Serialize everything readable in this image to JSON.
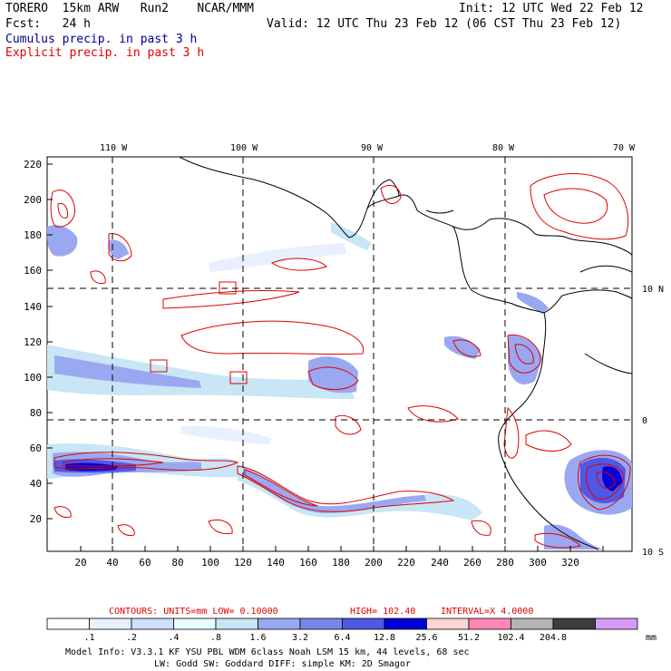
{
  "header": {
    "model": "TORERO  15km ARW   Run2    NCAR/MMM",
    "init": "Init: 12 UTC Wed 22 Feb 12",
    "fcst": "Fcst:   24 h",
    "valid": "Valid: 12 UTC Thu 23 Feb 12 (06 CST Thu 23 Feb 12)",
    "cumulus": "Cumulus precip. in past 3 h",
    "explicit": "Explicit precip. in past 3 h"
  },
  "axes": {
    "lon_labels": [
      "110 W",
      "100 W",
      "90 W",
      "80 W",
      "70 W"
    ],
    "lat_labels": [
      "10 N",
      "0",
      "10 S"
    ],
    "y_ticks": [
      "220",
      "200",
      "180",
      "160",
      "140",
      "120",
      "100",
      "80",
      "60",
      "40",
      "20"
    ],
    "x_ticks": [
      "20",
      "40",
      "60",
      "80",
      "100",
      "120",
      "140",
      "160",
      "180",
      "200",
      "220",
      "240",
      "260",
      "280",
      "300",
      "320"
    ]
  },
  "contours": {
    "units": "CONTOURS:  UNITS=mm  LOW= 0.10000",
    "high": "HIGH=  102.40",
    "interval": "INTERVAL=X  4.0000"
  },
  "colorbar": {
    "labels": [
      ".1",
      ".2",
      ".4",
      ".8",
      "1.6",
      "3.2",
      "6.4",
      "12.8",
      "25.6",
      "51.2",
      "102.4",
      "204.8"
    ],
    "unit": "mm",
    "colors": [
      "#ffffff",
      "#e8f0ff",
      "#cfdfff",
      "#e8ffff",
      "#c8e6f5",
      "#9aa8f2",
      "#7a85ec",
      "#5058e6",
      "#0000d8",
      "#ffd4d4",
      "#ff88b8",
      "#b4b4b4",
      "#3c3c3c",
      "#d79bf7"
    ]
  },
  "footer": {
    "line1": "Model Info: V3.3.1   KF     YSU PBL  WDM 6class  Noah LSM  15 km,   44 levels,   68 sec",
    "line2": "LW: Godd SW: Goddard DIFF: simple KM: 2D Smagor"
  }
}
